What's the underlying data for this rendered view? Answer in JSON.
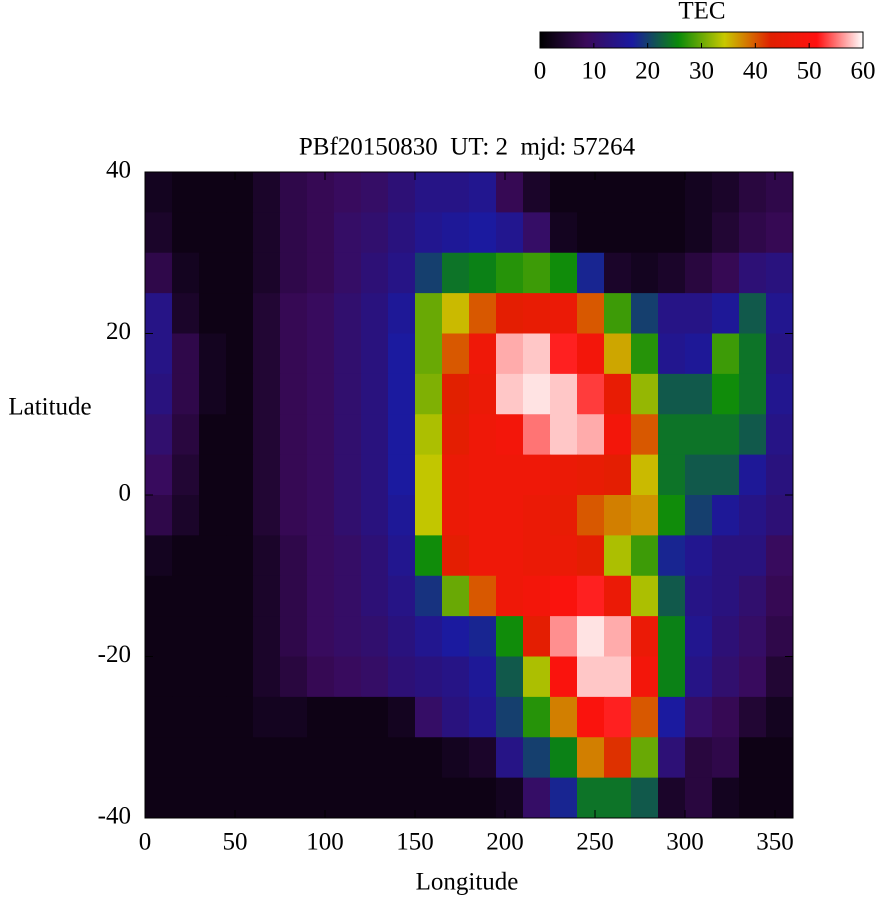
{
  "chart_data": {
    "type": "heatmap",
    "title": "PBf20150830  UT: 2  mjd: 57264",
    "x_label": "Longitude",
    "y_label": "Latitude",
    "xlim": [
      0,
      360
    ],
    "ylim": [
      -40,
      40
    ],
    "xticks": [
      0,
      50,
      100,
      150,
      200,
      250,
      300,
      350
    ],
    "yticks": [
      -40,
      -20,
      0,
      20,
      40
    ],
    "x": [
      7.5,
      22.5,
      37.5,
      52.5,
      67.5,
      82.5,
      97.5,
      112.5,
      127.5,
      142.5,
      157.5,
      172.5,
      187.5,
      202.5,
      217.5,
      232.5,
      247.5,
      262.5,
      277.5,
      292.5,
      307.5,
      322.5,
      337.5,
      352.5
    ],
    "y": [
      37.5,
      32.5,
      27.5,
      22.5,
      17.5,
      12.5,
      7.5,
      2.5,
      -2.5,
      -7.5,
      -12.5,
      -17.5,
      -22.5,
      -27.5,
      -32.5,
      -37.5
    ],
    "values": [
      [
        3,
        2,
        2,
        2,
        4,
        7,
        8,
        9,
        10,
        12,
        14,
        14,
        15,
        8,
        4,
        2,
        2,
        2,
        2,
        2,
        3,
        4,
        6,
        7
      ],
      [
        4,
        2,
        2,
        2,
        4,
        7,
        8,
        10,
        11,
        13,
        15,
        16,
        17,
        15,
        10,
        3,
        2,
        2,
        2,
        2,
        3,
        5,
        7,
        8
      ],
      [
        7,
        3,
        2,
        2,
        4,
        7,
        8,
        10,
        12,
        14,
        20,
        24,
        25,
        27,
        28,
        26,
        18,
        4,
        3,
        4,
        6,
        8,
        12,
        13
      ],
      [
        14,
        4,
        2,
        2,
        5,
        8,
        9,
        11,
        13,
        16,
        30,
        35,
        40,
        44,
        45,
        46,
        40,
        28,
        20,
        14,
        14,
        16,
        22,
        15
      ],
      [
        14,
        7,
        3,
        2,
        5,
        8,
        9,
        11,
        13,
        17,
        30,
        40,
        47,
        57,
        58,
        52,
        48,
        36,
        27,
        15,
        16,
        28,
        24,
        14
      ],
      [
        13,
        7,
        3,
        2,
        5,
        8,
        9,
        11,
        13,
        17,
        31,
        43,
        46,
        58,
        59,
        58,
        53,
        45,
        32,
        22,
        22,
        26,
        24,
        15
      ],
      [
        11,
        6,
        2,
        2,
        5,
        8,
        9,
        11,
        13,
        17,
        33,
        44,
        47,
        48,
        55,
        58,
        57,
        48,
        40,
        24,
        24,
        24,
        22,
        14
      ],
      [
        9,
        5,
        2,
        2,
        5,
        8,
        9,
        11,
        13,
        17,
        34,
        46,
        47,
        47,
        47,
        46,
        45,
        44,
        35,
        24,
        22,
        22,
        16,
        13
      ],
      [
        7,
        4,
        2,
        2,
        5,
        8,
        9,
        11,
        13,
        16,
        34,
        46,
        47,
        47,
        46,
        45,
        40,
        38,
        37,
        26,
        20,
        16,
        14,
        12
      ],
      [
        3,
        2,
        2,
        2,
        4,
        7,
        9,
        10,
        12,
        15,
        26,
        44,
        47,
        47,
        46,
        46,
        44,
        33,
        28,
        18,
        15,
        13,
        13,
        9
      ],
      [
        2,
        2,
        2,
        2,
        4,
        7,
        9,
        10,
        12,
        14,
        19,
        30,
        40,
        47,
        48,
        50,
        52,
        46,
        33,
        22,
        14,
        13,
        11,
        8
      ],
      [
        2,
        2,
        2,
        2,
        4,
        7,
        9,
        10,
        11,
        13,
        15,
        17,
        18,
        26,
        44,
        56,
        59,
        57,
        46,
        25,
        15,
        12,
        10,
        7
      ],
      [
        2,
        2,
        2,
        2,
        4,
        6,
        8,
        9,
        10,
        12,
        13,
        14,
        16,
        22,
        33,
        50,
        58,
        58,
        48,
        25,
        14,
        11,
        9,
        5
      ],
      [
        2,
        2,
        2,
        2,
        3,
        3,
        2,
        2,
        2,
        3,
        10,
        13,
        15,
        20,
        27,
        38,
        50,
        52,
        40,
        17,
        10,
        8,
        5,
        3
      ],
      [
        2,
        2,
        2,
        2,
        2,
        2,
        2,
        2,
        2,
        2,
        2,
        3,
        4,
        14,
        20,
        25,
        38,
        42,
        30,
        12,
        6,
        7,
        2,
        2
      ],
      [
        2,
        2,
        2,
        2,
        2,
        2,
        2,
        2,
        2,
        2,
        2,
        2,
        2,
        3,
        10,
        18,
        24,
        24,
        22,
        4,
        6,
        3,
        2,
        2
      ]
    ],
    "colorbar": {
      "label": "TEC",
      "lim": [
        0,
        60
      ],
      "ticks": [
        0,
        10,
        20,
        30,
        40,
        50,
        60
      ]
    },
    "colormap": [
      "#000000",
      "#3a0a5a",
      "#1a1aa0",
      "#0a8a0a",
      "#c8c800",
      "#e02000",
      "#ff1010",
      "#ffffff"
    ]
  }
}
